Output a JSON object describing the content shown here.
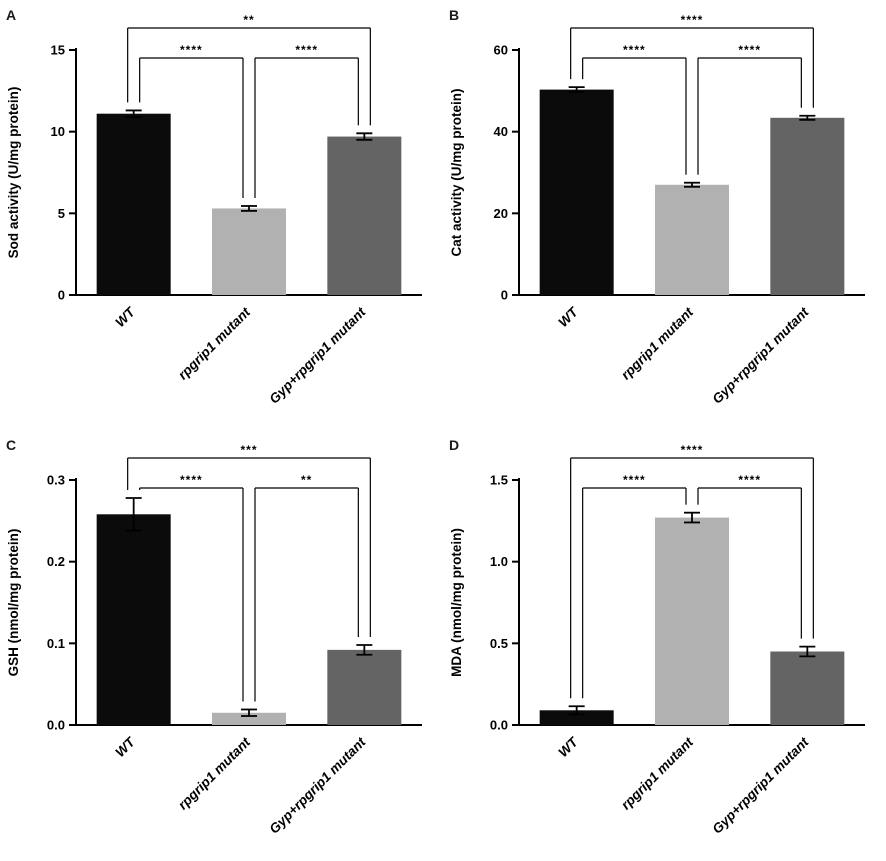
{
  "figure": {
    "background": "#ffffff",
    "panel_letters": [
      "A",
      "B",
      "C",
      "D"
    ]
  },
  "bar_colors": [
    "#0b0b0b",
    "#b1b1b1",
    "#646464"
  ],
  "chart_data": [
    {
      "type": "bar",
      "panel": "A",
      "title": "",
      "xlabel": "",
      "ylabel": "Sod activity (U/mg protein)",
      "categories": [
        "WT",
        "rpgrip1 mutant",
        "Gyp+rpgrip1 mutant"
      ],
      "values": [
        11.1,
        5.3,
        9.7
      ],
      "errors": [
        0.2,
        0.15,
        0.2
      ],
      "ylim": [
        0,
        15
      ],
      "yticks": [
        0,
        5,
        10,
        15
      ],
      "ytick_labels": [
        "0",
        "5",
        "10",
        "15"
      ],
      "grid": false,
      "legend": false,
      "significance": [
        {
          "from": 0,
          "to": 1,
          "label": "****",
          "level": 1
        },
        {
          "from": 1,
          "to": 2,
          "label": "****",
          "level": 1
        },
        {
          "from": 0,
          "to": 2,
          "label": "**",
          "level": 2
        }
      ]
    },
    {
      "type": "bar",
      "panel": "B",
      "title": "",
      "xlabel": "",
      "ylabel": "Cat activity (U/mg protein)",
      "categories": [
        "WT",
        "rpgrip1 mutant",
        "Gyp+rpgrip1 mutant"
      ],
      "values": [
        50.3,
        27.0,
        43.4
      ],
      "errors": [
        0.6,
        0.5,
        0.5
      ],
      "ylim": [
        0,
        60
      ],
      "yticks": [
        0,
        20,
        40,
        60
      ],
      "ytick_labels": [
        "0",
        "20",
        "40",
        "60"
      ],
      "grid": false,
      "legend": false,
      "significance": [
        {
          "from": 0,
          "to": 1,
          "label": "****",
          "level": 1
        },
        {
          "from": 1,
          "to": 2,
          "label": "****",
          "level": 1
        },
        {
          "from": 0,
          "to": 2,
          "label": "****",
          "level": 2
        }
      ]
    },
    {
      "type": "bar",
      "panel": "C",
      "title": "",
      "xlabel": "",
      "ylabel": "GSH (nmol/mg protein)",
      "categories": [
        "WT",
        "rpgrip1 mutant",
        "Gyp+rpgrip1 mutant"
      ],
      "values": [
        0.258,
        0.015,
        0.092
      ],
      "errors": [
        0.02,
        0.004,
        0.006
      ],
      "ylim": [
        0,
        0.3
      ],
      "yticks": [
        0,
        0.1,
        0.2,
        0.3
      ],
      "ytick_labels": [
        "0.0",
        "0.1",
        "0.2",
        "0.3"
      ],
      "grid": false,
      "legend": false,
      "significance": [
        {
          "from": 0,
          "to": 1,
          "label": "****",
          "level": 1
        },
        {
          "from": 1,
          "to": 2,
          "label": "**",
          "level": 1
        },
        {
          "from": 0,
          "to": 2,
          "label": "***",
          "level": 2
        }
      ]
    },
    {
      "type": "bar",
      "panel": "D",
      "title": "",
      "xlabel": "",
      "ylabel": "MDA (nmol/mg protein)",
      "categories": [
        "WT",
        "rpgrip1 mutant",
        "Gyp+rpgrip1 mutant"
      ],
      "values": [
        0.09,
        1.27,
        0.45
      ],
      "errors": [
        0.025,
        0.03,
        0.03
      ],
      "ylim": [
        0,
        1.5
      ],
      "yticks": [
        0,
        0.5,
        1.0,
        1.5
      ],
      "ytick_labels": [
        "0.0",
        "0.5",
        "1.0",
        "1.5"
      ],
      "grid": false,
      "legend": false,
      "significance": [
        {
          "from": 0,
          "to": 1,
          "label": "****",
          "level": 1
        },
        {
          "from": 1,
          "to": 2,
          "label": "****",
          "level": 1
        },
        {
          "from": 0,
          "to": 2,
          "label": "****",
          "level": 2
        }
      ]
    }
  ]
}
